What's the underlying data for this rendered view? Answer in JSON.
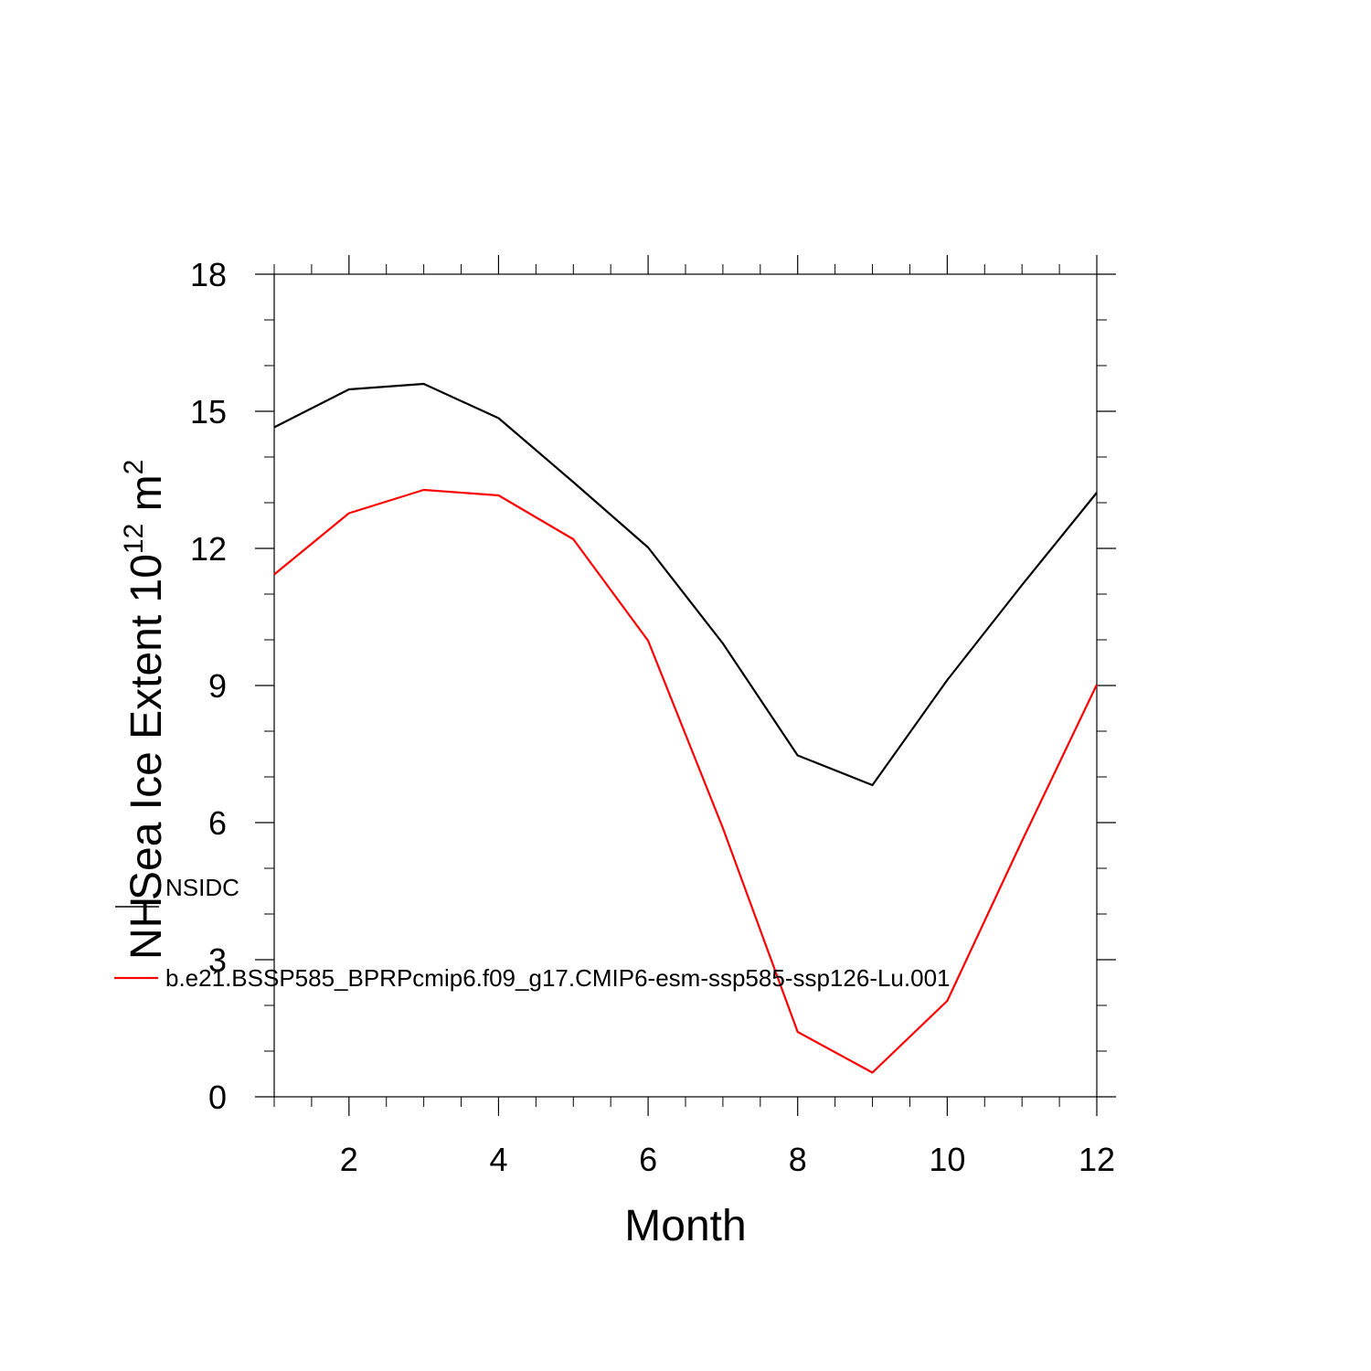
{
  "chart_data": {
    "type": "line",
    "xlabel": "Month",
    "ylabel": "Sea Ice Extent 10",
    "ylabel_exponent": "12",
    "ylabel_unit": " m",
    "ylabel_unit_exponent": "2",
    "x": [
      1,
      2,
      3,
      4,
      5,
      6,
      7,
      8,
      9,
      10,
      11,
      12
    ],
    "xlim": [
      1,
      12
    ],
    "ylim": [
      0,
      18
    ],
    "xticks": [
      2,
      4,
      6,
      8,
      10,
      12
    ],
    "yticks": [
      0,
      3,
      6,
      9,
      12,
      15,
      18
    ],
    "grid": false,
    "legend_placement": "lower-left",
    "legend_prefix": "NH",
    "series": [
      {
        "name": "NSIDC",
        "color": "#000000",
        "values": [
          14.65,
          15.48,
          15.6,
          14.85,
          13.45,
          12.02,
          9.92,
          7.47,
          6.82,
          9.12,
          11.2,
          13.22
        ]
      },
      {
        "name": "b.e21.BSSP585_BPRPcmip6.f09_g17.CMIP6-esm-ssp585-ssp126-Lu.001",
        "color": "#ff0000",
        "values": [
          11.43,
          12.77,
          13.28,
          13.16,
          12.2,
          9.98,
          5.88,
          1.42,
          0.53,
          2.1,
          5.6,
          9.02
        ]
      }
    ]
  }
}
